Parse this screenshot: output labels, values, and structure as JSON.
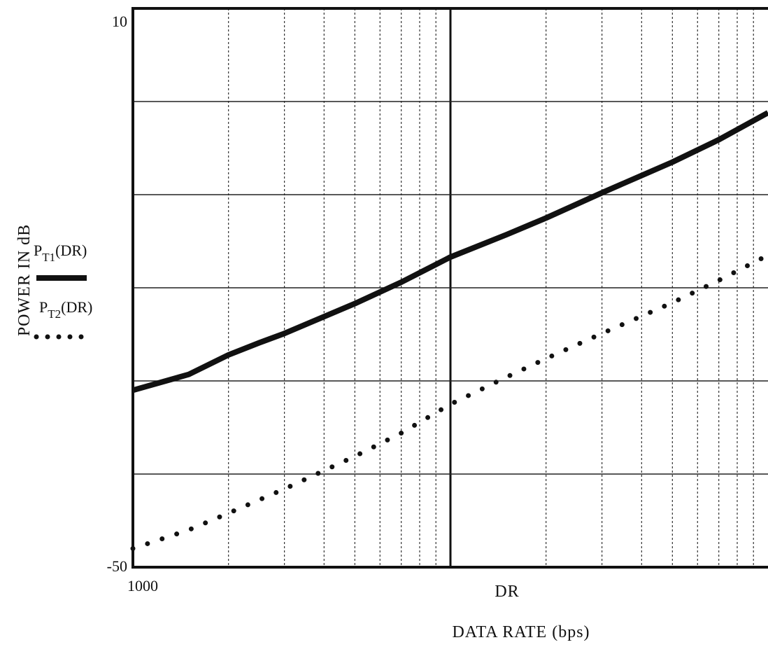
{
  "chart_data": {
    "type": "line",
    "title": "",
    "xlabel": "DATA RATE (bps)",
    "x_var_label": "DR",
    "ylabel": "POWER IN dB",
    "x_scale": "log",
    "xlim": [
      1000,
      100000
    ],
    "ylim": [
      -50,
      10
    ],
    "y_tick_labels": [
      "10",
      "-50"
    ],
    "x_tick_labels": [
      "1000"
    ],
    "grid": true,
    "legend_placement": "left",
    "series": [
      {
        "name": "P_T1(DR)",
        "label_main": "P",
        "label_sub": "T1",
        "label_arg": "(DR)",
        "style": "solid",
        "color": "#111111",
        "x": [
          1000,
          1500,
          2000,
          2500,
          3000,
          5000,
          7000,
          10000,
          15000,
          20000,
          30000,
          50000,
          70000,
          100000
        ],
        "values": [
          -31,
          -29.3,
          -27.2,
          -25.9,
          -24.9,
          -21.7,
          -19.4,
          -16.7,
          -14.3,
          -12.5,
          -9.8,
          -6.5,
          -4.1,
          -1.2
        ]
      },
      {
        "name": "P_T2(DR)",
        "label_main": "P",
        "label_sub": "T2",
        "label_arg": "(DR)",
        "style": "dotted",
        "color": "#111111",
        "x": [
          1000,
          1500,
          2000,
          3000,
          5000,
          7000,
          10000,
          15000,
          20000,
          30000,
          50000,
          70000,
          100000
        ],
        "values": [
          -48,
          -46,
          -44.2,
          -41.6,
          -38.1,
          -35.6,
          -32.5,
          -29.6,
          -27.6,
          -24.9,
          -21.6,
          -19.2,
          -16.5
        ]
      }
    ]
  }
}
